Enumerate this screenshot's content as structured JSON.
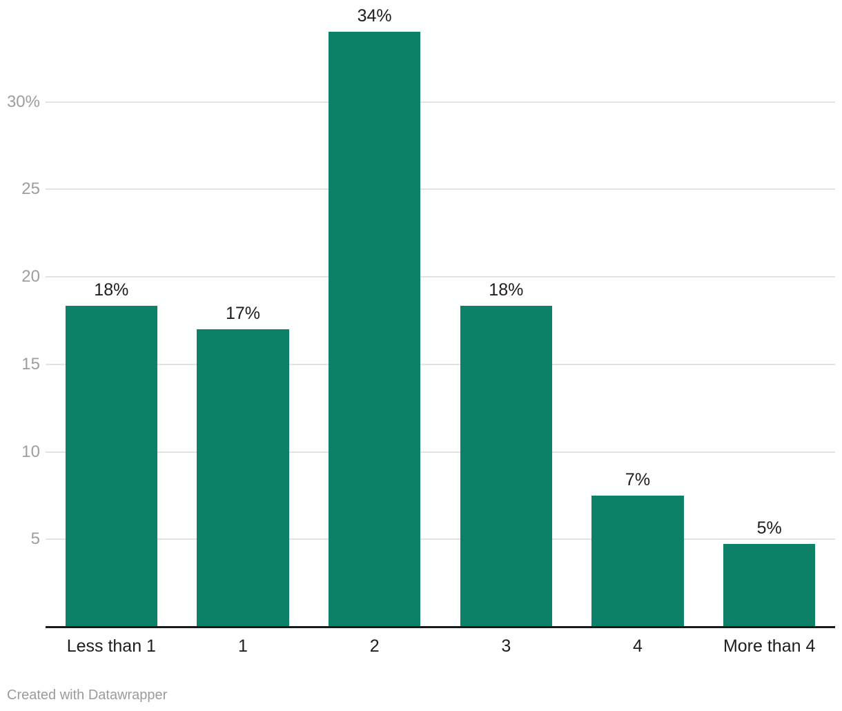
{
  "chart_data": {
    "type": "bar",
    "title": "",
    "xlabel": "",
    "ylabel": "",
    "categories": [
      "Less than 1",
      "1",
      "2",
      "3",
      "4",
      "More than 4"
    ],
    "values": [
      18,
      17,
      34,
      18,
      7,
      5
    ],
    "bar_labels": [
      "18%",
      "17%",
      "34%",
      "18%",
      "7%",
      "5%"
    ],
    "values_plotted": [
      18.35,
      17,
      34,
      18.35,
      7.5,
      4.75
    ],
    "ylim": [
      0,
      34.2
    ],
    "yticks": [
      5,
      10,
      15,
      20,
      25,
      30
    ],
    "ytick_labels": [
      "5",
      "10",
      "15",
      "20",
      "25",
      "30%"
    ],
    "grid": true,
    "legend": false,
    "orientation": "vertical"
  },
  "colors": {
    "bar": "#0d8168",
    "grid": "#e2e2e2",
    "axis_line": "#18191a",
    "tick_label": "#9d9d9d",
    "data_label": "#1d1d1d",
    "category_label": "#1d1d1d",
    "footer_text": "#9b9b9b",
    "background": "#ffffff"
  },
  "footer": {
    "credit": "Created with Datawrapper"
  }
}
